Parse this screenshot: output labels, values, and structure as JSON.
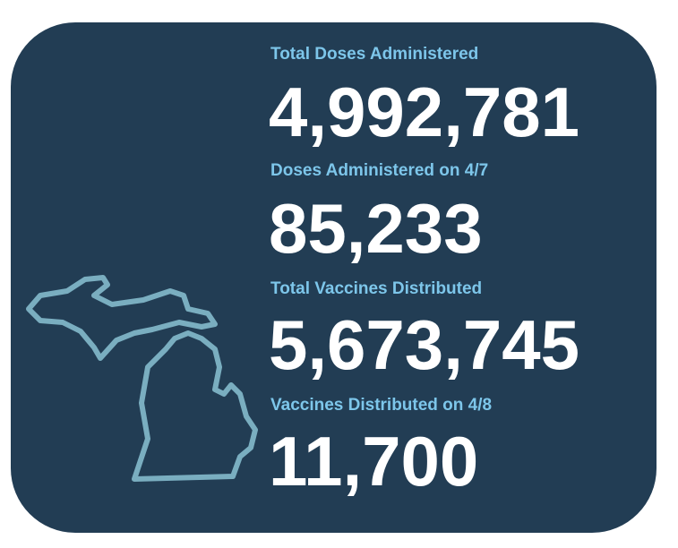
{
  "stats": [
    {
      "label": "Total Doses Administered",
      "value": "4,992,781"
    },
    {
      "label": "Doses Administered on 4/7",
      "value": "85,233"
    },
    {
      "label": "Total Vaccines Distributed",
      "value": "5,673,745"
    },
    {
      "label": "Vaccines Distributed on 4/8",
      "value": "11,700"
    }
  ]
}
